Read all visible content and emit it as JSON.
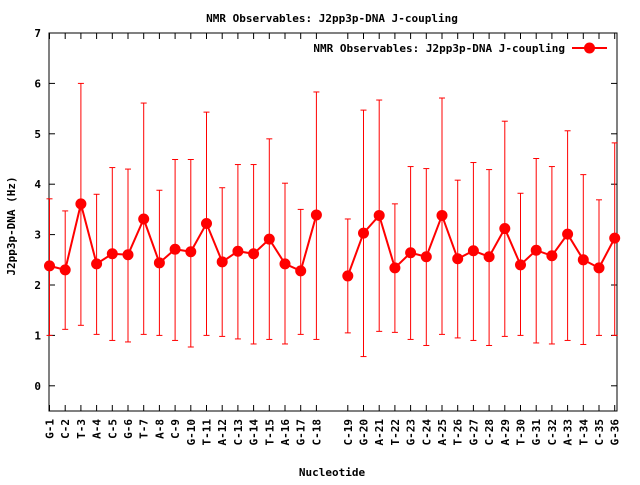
{
  "chart_data": {
    "type": "line",
    "title": "NMR Observables: J2pp3p-DNA J-coupling",
    "xlabel": "Nucleotide",
    "ylabel": "J2pp3p-DNA (Hz)",
    "ylim": [
      -0.5,
      7
    ],
    "yticks": [
      0,
      1,
      2,
      3,
      4,
      5,
      6,
      7
    ],
    "grid": false,
    "legend_position": "top-right",
    "series_color": "#ff0000",
    "series": [
      {
        "name": "NMR Observables: J2pp3p-DNA J-coupling",
        "segments": [
          {
            "categories": [
              "G-1",
              "C-2",
              "T-3",
              "A-4",
              "C-5",
              "G-6",
              "T-7",
              "A-8",
              "C-9",
              "G-10",
              "T-11",
              "A-12",
              "C-13",
              "G-14",
              "T-15",
              "A-16",
              "G-17",
              "C-18"
            ],
            "values": [
              2.38,
              2.3,
              3.61,
              2.42,
              2.62,
              2.6,
              3.31,
              2.44,
              2.71,
              2.66,
              3.22,
              2.46,
              2.67,
              2.62,
              2.91,
              2.42,
              2.28,
              3.39
            ],
            "err_low": [
              1.0,
              1.12,
              1.2,
              1.02,
              0.9,
              0.87,
              1.02,
              1.0,
              0.9,
              0.77,
              1.0,
              0.98,
              0.93,
              0.83,
              0.92,
              0.83,
              1.02,
              0.92
            ],
            "err_high": [
              3.71,
              3.47,
              6.0,
              3.8,
              4.33,
              4.3,
              5.61,
              3.88,
              4.49,
              4.49,
              5.43,
              3.93,
              4.39,
              4.39,
              4.9,
              4.02,
              3.5,
              5.83
            ]
          },
          {
            "categories": [
              "C-19",
              "G-20",
              "A-21",
              "T-22",
              "G-23",
              "C-24",
              "A-25",
              "T-26",
              "G-27",
              "C-28",
              "A-29",
              "T-30",
              "G-31",
              "C-32",
              "A-33",
              "T-34",
              "C-35",
              "G-36"
            ],
            "values": [
              2.18,
              3.03,
              3.38,
              2.34,
              2.64,
              2.56,
              3.38,
              2.52,
              2.68,
              2.56,
              3.12,
              2.4,
              2.69,
              2.58,
              3.01,
              2.5,
              2.34,
              2.93
            ],
            "err_low": [
              1.05,
              0.58,
              1.08,
              1.06,
              0.92,
              0.8,
              1.02,
              0.95,
              0.9,
              0.8,
              0.98,
              1.0,
              0.85,
              0.83,
              0.9,
              0.82,
              1.0,
              1.0
            ],
            "err_high": [
              3.31,
              5.47,
              5.67,
              3.61,
              4.35,
              4.31,
              5.71,
              4.08,
              4.43,
              4.29,
              5.25,
              3.82,
              4.51,
              4.35,
              5.06,
              4.19,
              3.69,
              4.82
            ]
          }
        ]
      }
    ]
  }
}
